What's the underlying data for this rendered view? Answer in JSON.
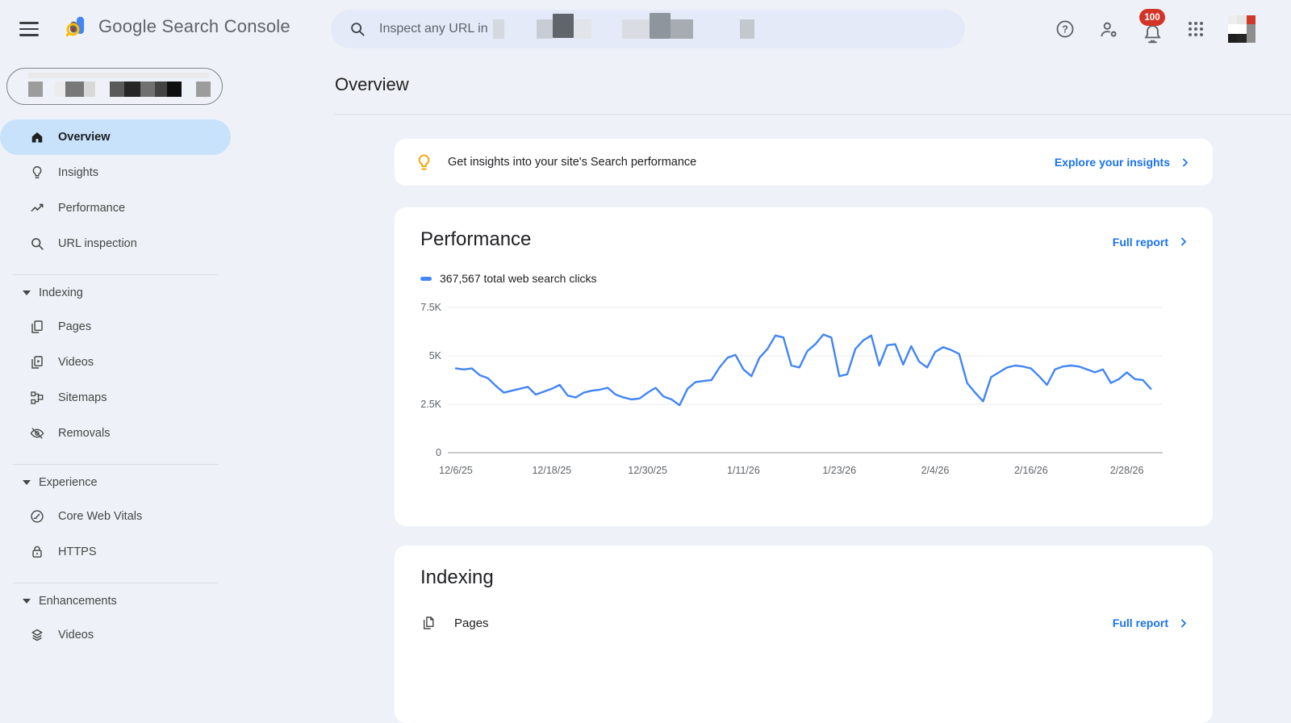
{
  "topbar": {
    "app_title": "Google Search Console",
    "search": {
      "placeholder": "Inspect any URL in"
    },
    "notifications_badge": "100"
  },
  "sidebar": {
    "items": [
      {
        "label": "Overview",
        "selected": true
      },
      {
        "label": "Insights"
      },
      {
        "label": "Performance"
      },
      {
        "label": "URL inspection"
      }
    ],
    "sections": [
      {
        "label": "Indexing",
        "items": [
          {
            "label": "Pages"
          },
          {
            "label": "Videos"
          },
          {
            "label": "Sitemaps"
          },
          {
            "label": "Removals"
          }
        ]
      },
      {
        "label": "Experience",
        "items": [
          {
            "label": "Core Web Vitals"
          },
          {
            "label": "HTTPS"
          }
        ]
      },
      {
        "label": "Enhancements",
        "items": [
          {
            "label": "Videos"
          }
        ]
      }
    ]
  },
  "main": {
    "page_title": "Overview",
    "banner": {
      "text": "Get insights into your site's Search performance",
      "link_label": "Explore your insights"
    },
    "performance": {
      "title": "Performance",
      "link_label": "Full report",
      "legend_label": "367,567 total web search clicks"
    },
    "indexing": {
      "title": "Indexing",
      "row_label": "Pages",
      "link_label": "Full report"
    }
  },
  "colors": {
    "accent_link_blue": "#1a73e8",
    "chart_line_blue": "#4285f4",
    "badge_red": "#d33427",
    "bulb_amber": "#f9ab00",
    "selected_pill_blue": "#c8e2fb",
    "page_background": "#eef2f8"
  },
  "chart_data": {
    "type": "line",
    "title": "367,567 total web search clicks",
    "xlabel": "",
    "ylabel": "",
    "ylim": [
      0,
      7500
    ],
    "grid": true,
    "legend_position": "top-left",
    "y_ticks": [
      {
        "value": 0,
        "label": "0"
      },
      {
        "value": 2500,
        "label": "2.5K"
      },
      {
        "value": 5000,
        "label": "5K"
      },
      {
        "value": 7500,
        "label": "7.5K"
      }
    ],
    "x_tick_indices": [
      0,
      12,
      24,
      36,
      48,
      60,
      72,
      84
    ],
    "x_tick_labels": [
      "12/6/25",
      "12/18/25",
      "12/30/25",
      "1/11/26",
      "1/23/26",
      "2/4/26",
      "2/16/26",
      "2/28/26"
    ],
    "series": [
      {
        "name": "Total web search clicks",
        "color": "#4285f4",
        "values": [
          4350,
          4300,
          4350,
          4000,
          3850,
          3450,
          3100,
          3200,
          3300,
          3400,
          3000,
          3150,
          3300,
          3500,
          2950,
          2850,
          3100,
          3200,
          3250,
          3350,
          3000,
          2850,
          2750,
          2800,
          3100,
          3350,
          2900,
          2750,
          2450,
          3300,
          3650,
          3700,
          3750,
          4400,
          4900,
          5050,
          4300,
          3950,
          4900,
          5350,
          6050,
          5950,
          4500,
          4400,
          5250,
          5600,
          6100,
          5950,
          3950,
          4050,
          5350,
          5800,
          6050,
          4500,
          5550,
          5600,
          4550,
          5500,
          4700,
          4400,
          5200,
          5450,
          5300,
          5100,
          3600,
          3100,
          2650,
          3900,
          4150,
          4400,
          4500,
          4450,
          4350,
          3950,
          3500,
          4300,
          4450,
          4500,
          4450,
          4300,
          4150,
          4300,
          3600,
          3800,
          4150,
          3800,
          3750,
          3300
        ]
      }
    ]
  }
}
